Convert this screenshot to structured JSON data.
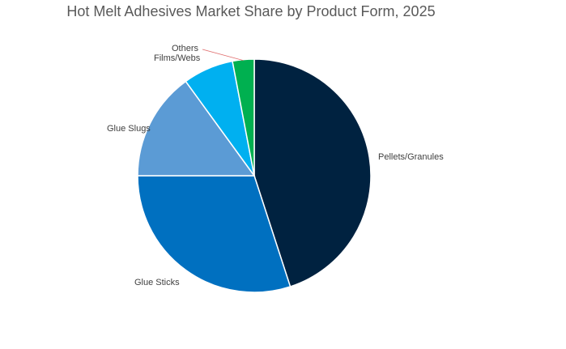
{
  "chart_data": {
    "type": "pie",
    "title": "Hot Melt Adhesives Market Share by Product Form, 2025",
    "unit": "%",
    "slices": [
      {
        "label": "Pellets/Granules",
        "value": 45,
        "color": "#002240"
      },
      {
        "label": "Glue Sticks",
        "value": 30,
        "color": "#0070C0"
      },
      {
        "label": "Glue Slugs",
        "value": 15,
        "color": "#5B9BD5"
      },
      {
        "label": "Films/Webs",
        "value": 7,
        "color": "#00B0F0"
      },
      {
        "label": "Others",
        "value": 3,
        "color": "#00B050"
      }
    ],
    "legend": "none",
    "data_labels": "category-name-outside"
  }
}
